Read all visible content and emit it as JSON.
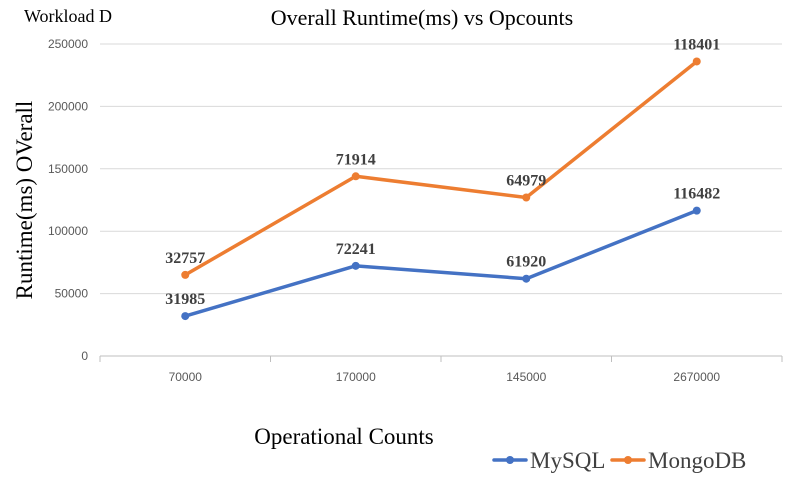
{
  "chart_data": {
    "type": "line",
    "corner_label": "Workload D",
    "title": "Overall Runtime(ms) vs Opcounts",
    "xlabel": "Operational Counts",
    "ylabel": "Runtime(ms) OVerall",
    "categories": [
      "70000",
      "170000",
      "145000",
      "2670000"
    ],
    "ylim": [
      0,
      250000
    ],
    "ytick_step": 50000,
    "grid": true,
    "legend_position": "bottom-right",
    "series": [
      {
        "name": "MySQL",
        "color": "#4472C4",
        "values": [
          31985,
          72241,
          61920,
          116482
        ],
        "labels": [
          "31985",
          "72241",
          "61920",
          "116482"
        ]
      },
      {
        "name": "MongoDB",
        "color": "#ED7D31",
        "values": [
          32757,
          71914,
          64979,
          118401
        ],
        "plot_values": [
          65000,
          144000,
          127000,
          236000
        ],
        "labels": [
          "32757",
          "71914",
          "64979",
          "118401"
        ]
      }
    ]
  }
}
